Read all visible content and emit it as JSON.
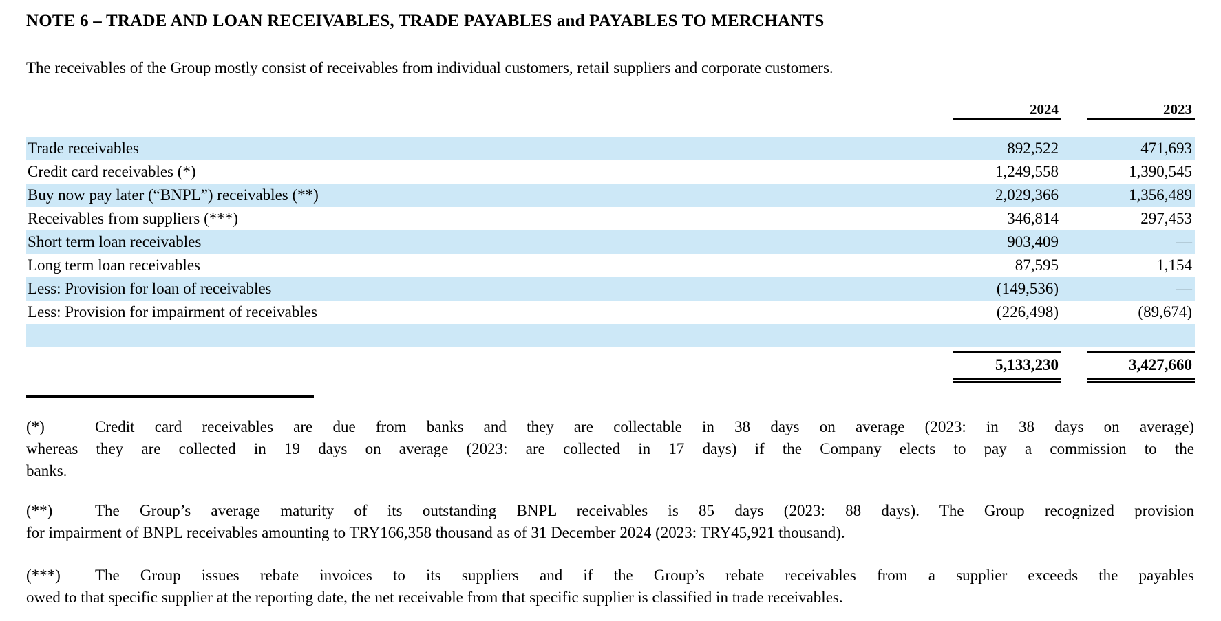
{
  "note": {
    "title": "NOTE 6 – TRADE AND LOAN RECEIVABLES, TRADE PAYABLES and PAYABLES TO MERCHANTS",
    "intro": "The receivables of the Group mostly consist of receivables from individual customers, retail suppliers and corporate customers."
  },
  "table": {
    "columns": [
      "2024",
      "2023"
    ],
    "rows": [
      {
        "label": "Trade receivables",
        "v2024": "892,522",
        "v2023": "471,693"
      },
      {
        "label": "Credit card receivables (*)",
        "v2024": "1,249,558",
        "v2023": "1,390,545"
      },
      {
        "label": "Buy now pay later (“BNPL”) receivables (**)",
        "v2024": "2,029,366",
        "v2023": "1,356,489"
      },
      {
        "label": "Receivables from suppliers (***)",
        "v2024": "346,814",
        "v2023": "297,453"
      },
      {
        "label": "Short term loan receivables",
        "v2024": "903,409",
        "v2023": "—"
      },
      {
        "label": "Long term loan receivables",
        "v2024": "87,595",
        "v2023": "1,154"
      },
      {
        "label": "Less: Provision for loan of receivables",
        "v2024": "(149,536)",
        "v2023": "—"
      },
      {
        "label": "Less: Provision for impairment of receivables",
        "v2024": "(226,498)",
        "v2023": "(89,674)"
      }
    ],
    "total": {
      "v2024": "5,133,230",
      "v2023": "3,427,660"
    }
  },
  "footnotes": [
    {
      "marker": "(*)",
      "lines": [
        "Credit card receivables are due from banks and they are collectable in 38 days on average (2023: in 38 days on average)",
        "whereas they are collected in 19 days on average (2023: are collected in 17 days) if the Company elects to pay a commission to the",
        "banks."
      ]
    },
    {
      "marker": "(**)",
      "lines": [
        "The Group’s average maturity of its outstanding BNPL receivables is 85 days (2023: 88 days). The Group recognized provision",
        "for impairment of BNPL receivables amounting to TRY166,358 thousand as of 31 December 2024 (2023: TRY45,921 thousand)."
      ]
    },
    {
      "marker": "(***)",
      "lines": [
        "The Group issues rebate invoices to its suppliers and if the Group’s rebate receivables from a supplier exceeds the payables",
        "owed to that specific supplier at the reporting date, the net receivable from that specific supplier is classified in trade receivables."
      ]
    }
  ],
  "colors": {
    "row_highlight": "#cde8f7",
    "text": "#000000"
  }
}
